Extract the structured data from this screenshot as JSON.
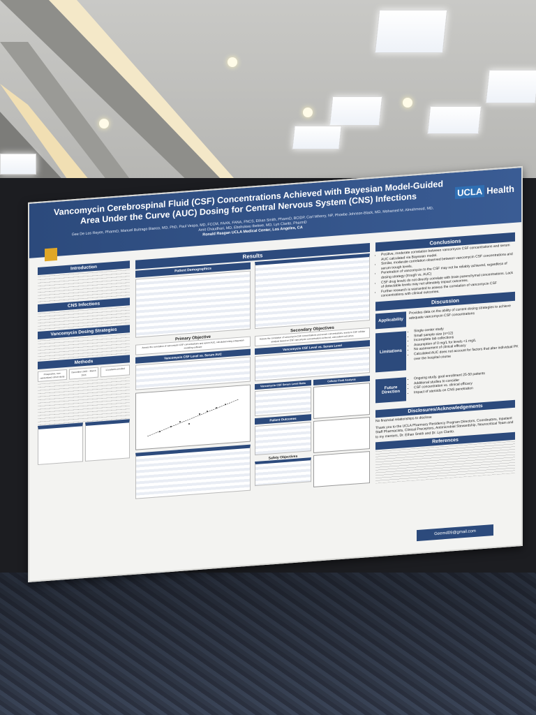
{
  "poster": {
    "title": "Vancomycin Cerebrospinal Fluid (CSF) Concentrations Achieved with Bayesian Model-Guided Area Under the Curve (AUC) Dosing for Central Nervous System (CNS) Infections",
    "authors": "Gee De Los Reyes, PharmD, Manuel Buitrago Bianco, MD, PhD, Paul Vespa, MD, FCCM, FAAN, FANA, FNCS, Ethan Smith, PharmD, BCIDP, Carl Wherry, NP, Phoebe Johnson-Black, MD, Mohamed M. Almahmoud, MD, Amit Chaudhari, MD, Ebohukwu Ibekwe, MD, Lyn Clarito, PharmD",
    "institution": "Ronald Reagan UCLA Medical Center, Los Angeles, CA",
    "logo_ucla": "UCLA",
    "logo_health": "Health",
    "sections": {
      "introduction": "Introduction",
      "cns_infections": "CNS Infections",
      "vancomycin_dosing": "Vancomycin Dosing Strategies",
      "methods": "Methods",
      "results": "Results",
      "patient_demographics": "Patient Demographics",
      "primary_objective": "Primary Objective",
      "secondary_objectives": "Secondary Objectives",
      "patient_outcomes": "Patient Outcomes",
      "safety_objectives": "Safety Objectives",
      "cellular_fluid": "Cellular Fluid Analysis",
      "conclusions": "Conclusions",
      "discussion": "Discussion",
      "disclosures": "Disclosures/Acknowledgements",
      "references": "References"
    },
    "methods_boxes": [
      "Prospective, non-randomized cohort study",
      "December 2023 – March 2024",
      "12 patients enrolled"
    ],
    "primary_objective_text": "Assess the correlation of vancomycin CSF concentrations and serum AUC, calculated using a Bayesian modeling software",
    "secondary_objective_text": "Assess the correlation of vancomycin CSF concentrations and serum concentrations, trends in CSF cellular analysis based on CSF vancomycin concentrations achieved, and patient outcomes",
    "table_vanc_auc": "Vancomycin CSF Level vs. Serum AUC",
    "table_vanc_serum": "Vancomycin CSF Level vs. Serum Level",
    "table_ratio": "Vancomycin CSF Serum Level Ratio",
    "conclusions": [
      "Positive, moderate correlation between vancomycin CSF concentrations and serum AUC calculated via Bayesian model.",
      "Similar, moderate correlation observed between vancomycin CSF concentrations and serum trough levels.",
      "Penetration of vancomycin to the CSF may not be reliably achieved, regardless of dosing strategy (trough vs. AUC)",
      "CSF drug levels do not directly correlate with brain parenchymal concentrations. Lack of detectable levels may not ultimately impact outcomes.",
      "Further research is warranted to assess the correlation of vancomycin CSF concentrations with clinical outcomes."
    ],
    "discussion": {
      "applicability_label": "Applicability",
      "applicability": "Provides data on the ability of current dosing strategies to achieve adequate vancomycin CSF concentrations",
      "limitations_label": "Limitations",
      "limitations": [
        "Single-center study",
        "Small sample size (n=12)",
        "Incomplete lab collections",
        "Assumption of 0 mg/L for levels <1 mg/L",
        "No assessment of clinical efficacy",
        "Calculated AUC does not account for factors that alter individual PK over the hospital course"
      ],
      "future_label": "Future Direction",
      "future": [
        "Ongoing study, goal enrollment 25-50 patients",
        "Additional studies to consider",
        "CSF concentration vs. clinical efficacy",
        "Impact of steroids on CNS penetration"
      ]
    },
    "disclosures": [
      "No financial relationships to disclose",
      "Thank you to the UCLA Pharmacy Residency Program Directors, Coordinators, Inpatient Staff Pharmacists, Clinical Preceptors, Antimicrobial Stewardship, Neurocritical Team and to my mentors, Dr. Ethan Smith and Dr. Lyn Clarito."
    ],
    "email": "Geemd09@gmail.com"
  }
}
